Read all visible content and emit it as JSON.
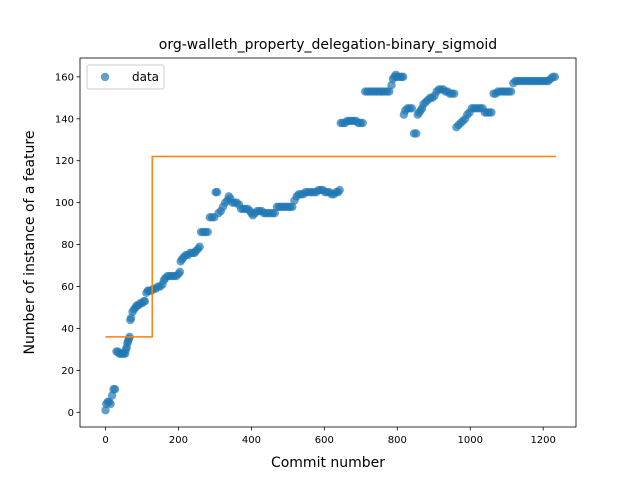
{
  "chart_data": {
    "type": "scatter",
    "title": "org-walleth_property_delegation-binary_sigmoid",
    "xlabel": "Commit number",
    "ylabel": "Number of instance of a feature",
    "xlim": [
      -70,
      1290
    ],
    "ylim": [
      -7,
      169
    ],
    "xticks": [
      0,
      200,
      400,
      600,
      800,
      1000,
      1200
    ],
    "yticks": [
      0,
      20,
      40,
      60,
      80,
      100,
      120,
      140,
      160
    ],
    "grid": false,
    "legend_position": "upper left",
    "series": [
      {
        "name": "data",
        "kind": "scatter",
        "color": "#1f77b4",
        "points": [
          [
            0,
            1
          ],
          [
            2,
            4
          ],
          [
            6,
            5
          ],
          [
            10,
            5
          ],
          [
            14,
            4
          ],
          [
            18,
            8
          ],
          [
            22,
            11
          ],
          [
            26,
            11
          ],
          [
            30,
            29
          ],
          [
            34,
            29
          ],
          [
            38,
            28
          ],
          [
            42,
            28
          ],
          [
            46,
            28
          ],
          [
            50,
            28
          ],
          [
            54,
            28
          ],
          [
            56,
            30
          ],
          [
            58,
            31
          ],
          [
            60,
            33
          ],
          [
            62,
            34
          ],
          [
            64,
            35
          ],
          [
            66,
            36
          ],
          [
            68,
            44
          ],
          [
            70,
            45
          ],
          [
            74,
            48
          ],
          [
            78,
            49
          ],
          [
            82,
            50
          ],
          [
            86,
            51
          ],
          [
            90,
            51
          ],
          [
            95,
            52
          ],
          [
            100,
            52
          ],
          [
            105,
            53
          ],
          [
            108,
            53
          ],
          [
            112,
            57
          ],
          [
            116,
            58
          ],
          [
            120,
            58
          ],
          [
            126,
            58
          ],
          [
            132,
            59
          ],
          [
            138,
            59
          ],
          [
            144,
            60
          ],
          [
            150,
            60
          ],
          [
            156,
            61
          ],
          [
            160,
            63
          ],
          [
            164,
            64
          ],
          [
            170,
            65
          ],
          [
            176,
            65
          ],
          [
            182,
            65
          ],
          [
            188,
            65
          ],
          [
            194,
            65
          ],
          [
            200,
            66
          ],
          [
            204,
            67
          ],
          [
            206,
            72
          ],
          [
            210,
            73
          ],
          [
            214,
            74
          ],
          [
            220,
            75
          ],
          [
            226,
            75
          ],
          [
            232,
            76
          ],
          [
            238,
            76
          ],
          [
            244,
            76
          ],
          [
            248,
            77
          ],
          [
            254,
            78
          ],
          [
            258,
            79
          ],
          [
            262,
            86
          ],
          [
            268,
            86
          ],
          [
            274,
            86
          ],
          [
            280,
            86
          ],
          [
            286,
            93
          ],
          [
            292,
            93
          ],
          [
            298,
            93
          ],
          [
            302,
            105
          ],
          [
            306,
            105
          ],
          [
            310,
            95
          ],
          [
            316,
            96
          ],
          [
            322,
            98
          ],
          [
            328,
            100
          ],
          [
            334,
            101
          ],
          [
            338,
            103
          ],
          [
            342,
            102
          ],
          [
            348,
            100
          ],
          [
            354,
            100
          ],
          [
            360,
            100
          ],
          [
            366,
            99
          ],
          [
            372,
            97
          ],
          [
            378,
            97
          ],
          [
            384,
            97
          ],
          [
            390,
            97
          ],
          [
            396,
            96
          ],
          [
            400,
            95
          ],
          [
            404,
            94
          ],
          [
            410,
            95
          ],
          [
            416,
            96
          ],
          [
            422,
            96
          ],
          [
            428,
            96
          ],
          [
            434,
            95
          ],
          [
            440,
            95
          ],
          [
            446,
            95
          ],
          [
            452,
            95
          ],
          [
            458,
            95
          ],
          [
            464,
            95
          ],
          [
            470,
            98
          ],
          [
            476,
            98
          ],
          [
            482,
            98
          ],
          [
            488,
            98
          ],
          [
            494,
            98
          ],
          [
            500,
            98
          ],
          [
            506,
            98
          ],
          [
            512,
            98
          ],
          [
            518,
            101
          ],
          [
            524,
            103
          ],
          [
            530,
            104
          ],
          [
            536,
            104
          ],
          [
            542,
            104
          ],
          [
            548,
            105
          ],
          [
            554,
            105
          ],
          [
            560,
            105
          ],
          [
            566,
            105
          ],
          [
            572,
            105
          ],
          [
            578,
            105
          ],
          [
            584,
            106
          ],
          [
            590,
            106
          ],
          [
            596,
            106
          ],
          [
            602,
            105
          ],
          [
            608,
            105
          ],
          [
            614,
            105
          ],
          [
            620,
            104
          ],
          [
            626,
            104
          ],
          [
            632,
            105
          ],
          [
            638,
            105
          ],
          [
            642,
            106
          ],
          [
            645,
            138
          ],
          [
            651,
            138
          ],
          [
            657,
            138
          ],
          [
            663,
            139
          ],
          [
            669,
            139
          ],
          [
            675,
            139
          ],
          [
            681,
            139
          ],
          [
            687,
            139
          ],
          [
            693,
            138
          ],
          [
            699,
            138
          ],
          [
            705,
            138
          ],
          [
            712,
            153
          ],
          [
            718,
            153
          ],
          [
            724,
            153
          ],
          [
            730,
            153
          ],
          [
            736,
            153
          ],
          [
            742,
            153
          ],
          [
            748,
            153
          ],
          [
            754,
            153
          ],
          [
            760,
            153
          ],
          [
            766,
            153
          ],
          [
            772,
            153
          ],
          [
            778,
            153
          ],
          [
            784,
            156
          ],
          [
            788,
            159
          ],
          [
            792,
            160
          ],
          [
            796,
            161
          ],
          [
            800,
            160
          ],
          [
            806,
            160
          ],
          [
            812,
            160
          ],
          [
            816,
            160
          ],
          [
            818,
            142
          ],
          [
            822,
            144
          ],
          [
            828,
            145
          ],
          [
            834,
            145
          ],
          [
            840,
            145
          ],
          [
            846,
            133
          ],
          [
            852,
            133
          ],
          [
            856,
            142
          ],
          [
            860,
            143
          ],
          [
            864,
            144
          ],
          [
            868,
            145
          ],
          [
            872,
            147
          ],
          [
            878,
            148
          ],
          [
            884,
            149
          ],
          [
            890,
            150
          ],
          [
            896,
            150
          ],
          [
            902,
            151
          ],
          [
            908,
            153
          ],
          [
            914,
            154
          ],
          [
            920,
            154
          ],
          [
            926,
            154
          ],
          [
            932,
            153
          ],
          [
            938,
            153
          ],
          [
            944,
            152
          ],
          [
            950,
            152
          ],
          [
            956,
            152
          ],
          [
            962,
            136
          ],
          [
            968,
            137
          ],
          [
            974,
            138
          ],
          [
            980,
            139
          ],
          [
            986,
            140
          ],
          [
            992,
            142
          ],
          [
            998,
            143
          ],
          [
            1004,
            145
          ],
          [
            1010,
            145
          ],
          [
            1016,
            145
          ],
          [
            1022,
            145
          ],
          [
            1028,
            145
          ],
          [
            1034,
            145
          ],
          [
            1040,
            143
          ],
          [
            1046,
            143
          ],
          [
            1052,
            143
          ],
          [
            1058,
            143
          ],
          [
            1064,
            152
          ],
          [
            1070,
            152
          ],
          [
            1076,
            153
          ],
          [
            1082,
            153
          ],
          [
            1088,
            153
          ],
          [
            1094,
            153
          ],
          [
            1100,
            153
          ],
          [
            1106,
            153
          ],
          [
            1112,
            153
          ],
          [
            1118,
            157
          ],
          [
            1124,
            158
          ],
          [
            1130,
            158
          ],
          [
            1136,
            158
          ],
          [
            1142,
            158
          ],
          [
            1148,
            158
          ],
          [
            1154,
            158
          ],
          [
            1160,
            158
          ],
          [
            1166,
            158
          ],
          [
            1172,
            158
          ],
          [
            1178,
            158
          ],
          [
            1184,
            158
          ],
          [
            1190,
            158
          ],
          [
            1196,
            158
          ],
          [
            1202,
            158
          ],
          [
            1208,
            158
          ],
          [
            1214,
            158
          ],
          [
            1220,
            159
          ],
          [
            1226,
            160
          ],
          [
            1232,
            160
          ]
        ]
      },
      {
        "kind": "line",
        "color": "#ff7f0e",
        "points": [
          [
            0,
            36
          ],
          [
            128,
            36
          ],
          [
            128,
            122
          ],
          [
            1235,
            122
          ]
        ]
      }
    ]
  }
}
